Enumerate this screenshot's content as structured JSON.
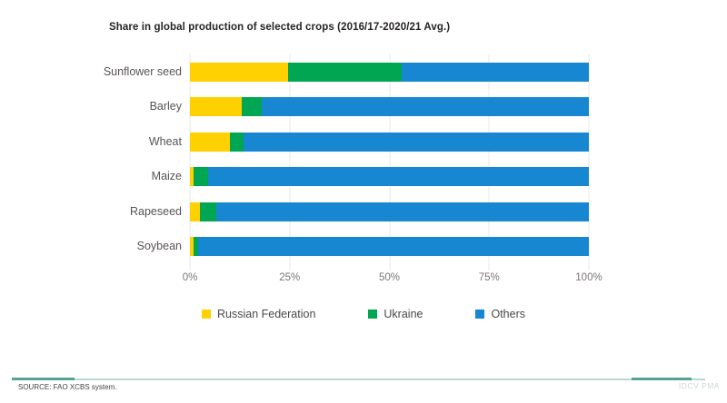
{
  "title": "Share in global production of selected crops (2016/17-2020/21 Avg.)",
  "chart_data": {
    "type": "bar",
    "orientation": "horizontal",
    "stacked": true,
    "title": "Share in global production of selected crops (2016/17-2020/21 Avg.)",
    "categories": [
      "Sunflower seed",
      "Barley",
      "Wheat",
      "Maize",
      "Rapeseed",
      "Soybean"
    ],
    "series": [
      {
        "name": "Russian Federation",
        "color": "#FFD100",
        "values": [
          24.5,
          13,
          10,
          1,
          2.5,
          1
        ]
      },
      {
        "name": "Ukraine",
        "color": "#00A651",
        "values": [
          28.5,
          5,
          3.5,
          3.5,
          4,
          1
        ]
      },
      {
        "name": "Others",
        "color": "#1787D1",
        "values": [
          47,
          82,
          86.5,
          95.5,
          93.5,
          98
        ]
      }
    ],
    "x_ticks": [
      "0%",
      "25%",
      "50%",
      "75%",
      "100%"
    ],
    "xlim": [
      0,
      100
    ],
    "xlabel": "",
    "ylabel": "",
    "grid": "vertical-light",
    "legend_position": "bottom"
  },
  "footer": {
    "source": "SOURCE: FAO XCBS system.",
    "watermark": "IDCV PMA"
  },
  "colors": {
    "divider_dark": "#57A294",
    "divider_light": "#B9D8D2",
    "gridline": "#EBE9E9"
  }
}
